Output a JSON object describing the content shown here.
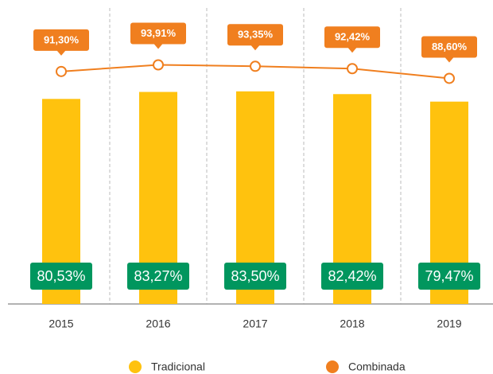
{
  "chart_data": {
    "type": "bar_line",
    "categories": [
      "2015",
      "2016",
      "2017",
      "2018",
      "2019"
    ],
    "series": [
      {
        "name": "Tradicional",
        "type": "bar",
        "color": "#ffc20e",
        "label_color": "#00965e",
        "values": [
          80.53,
          83.27,
          83.5,
          82.42,
          79.47
        ],
        "value_labels": [
          "80,53%",
          "83,27%",
          "83,50%",
          "82,42%",
          "79,47%"
        ]
      },
      {
        "name": "Combinada",
        "type": "line",
        "color": "#f07f1f",
        "label_color": "#f07f1f",
        "values": [
          91.3,
          93.91,
          93.35,
          92.42,
          88.6
        ],
        "value_labels": [
          "91,30%",
          "93,91%",
          "93,35%",
          "92,42%",
          "88,60%"
        ]
      }
    ]
  }
}
